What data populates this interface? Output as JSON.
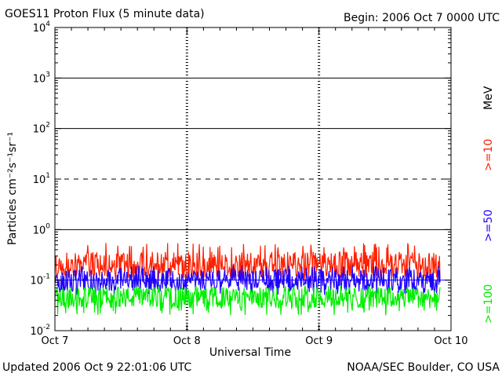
{
  "chart_data": {
    "type": "line",
    "title": "GOES11 Proton Flux (5 minute data)",
    "begin_label": "Begin: 2006 Oct 7 0000 UTC",
    "xlabel": "Universal Time",
    "ylabel": "Particles cm⁻²s⁻¹sr⁻¹",
    "y_scale": "log",
    "ylim": [
      0.01,
      10000
    ],
    "y_ticks": [
      {
        "base": "10",
        "exp": "-2"
      },
      {
        "base": "10",
        "exp": "-1"
      },
      {
        "base": "10",
        "exp": "0"
      },
      {
        "base": "10",
        "exp": "1"
      },
      {
        "base": "10",
        "exp": "2"
      },
      {
        "base": "10",
        "exp": "3"
      },
      {
        "base": "10",
        "exp": "4"
      }
    ],
    "x_ticks": [
      "Oct 7",
      "Oct 8",
      "Oct 9",
      "Oct 10"
    ],
    "xlim": [
      "2006-10-07T00:00Z",
      "2006-10-10T00:00Z"
    ],
    "data_end": "2006-10-09T22:00Z",
    "energy_unit": "MeV",
    "series": [
      {
        "name": ">=10",
        "color": "#ff2000",
        "typical_flux": 0.2,
        "flux_range": [
          0.1,
          0.55
        ]
      },
      {
        "name": ">=50",
        "color": "#2000ff",
        "typical_flux": 0.1,
        "flux_range": [
          0.05,
          0.2
        ]
      },
      {
        "name": ">=100",
        "color": "#00ee00",
        "typical_flux": 0.045,
        "flux_range": [
          0.02,
          0.08
        ]
      }
    ],
    "reference_lines": {
      "solid": [
        1,
        100,
        1000
      ],
      "dashed": [
        10
      ],
      "blue_solid": [
        0.1
      ]
    },
    "grid": true,
    "legend": "right"
  },
  "footer": {
    "updated": "Updated 2006 Oct  9 22:01:06 UTC",
    "source": "NOAA/SEC Boulder, CO USA"
  }
}
